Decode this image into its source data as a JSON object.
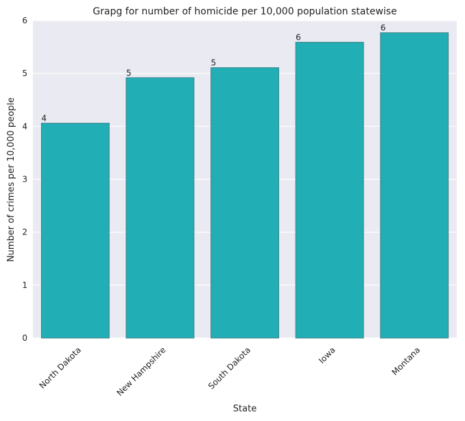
{
  "chart_data": {
    "type": "bar",
    "title": "Grapg for number of homicide per 10,000 population statewise",
    "xlabel": "State",
    "ylabel": "Number of crimes per 10,000 people",
    "categories": [
      "North Dakota",
      "New Hampshire",
      "South Dakota",
      "Iowa",
      "Montana"
    ],
    "values": [
      4.06,
      4.92,
      5.11,
      5.59,
      5.77
    ],
    "data_labels": [
      "4",
      "5",
      "5",
      "6",
      "6"
    ],
    "ylim": [
      0,
      6
    ],
    "yticks": [
      0,
      1,
      2,
      3,
      4,
      5,
      6
    ],
    "grid": true,
    "colors": {
      "bar": "#22aeb5",
      "bar_edge": "#3a7f86",
      "plot_background": "#eaeaf2",
      "grid": "#ffffff"
    }
  }
}
